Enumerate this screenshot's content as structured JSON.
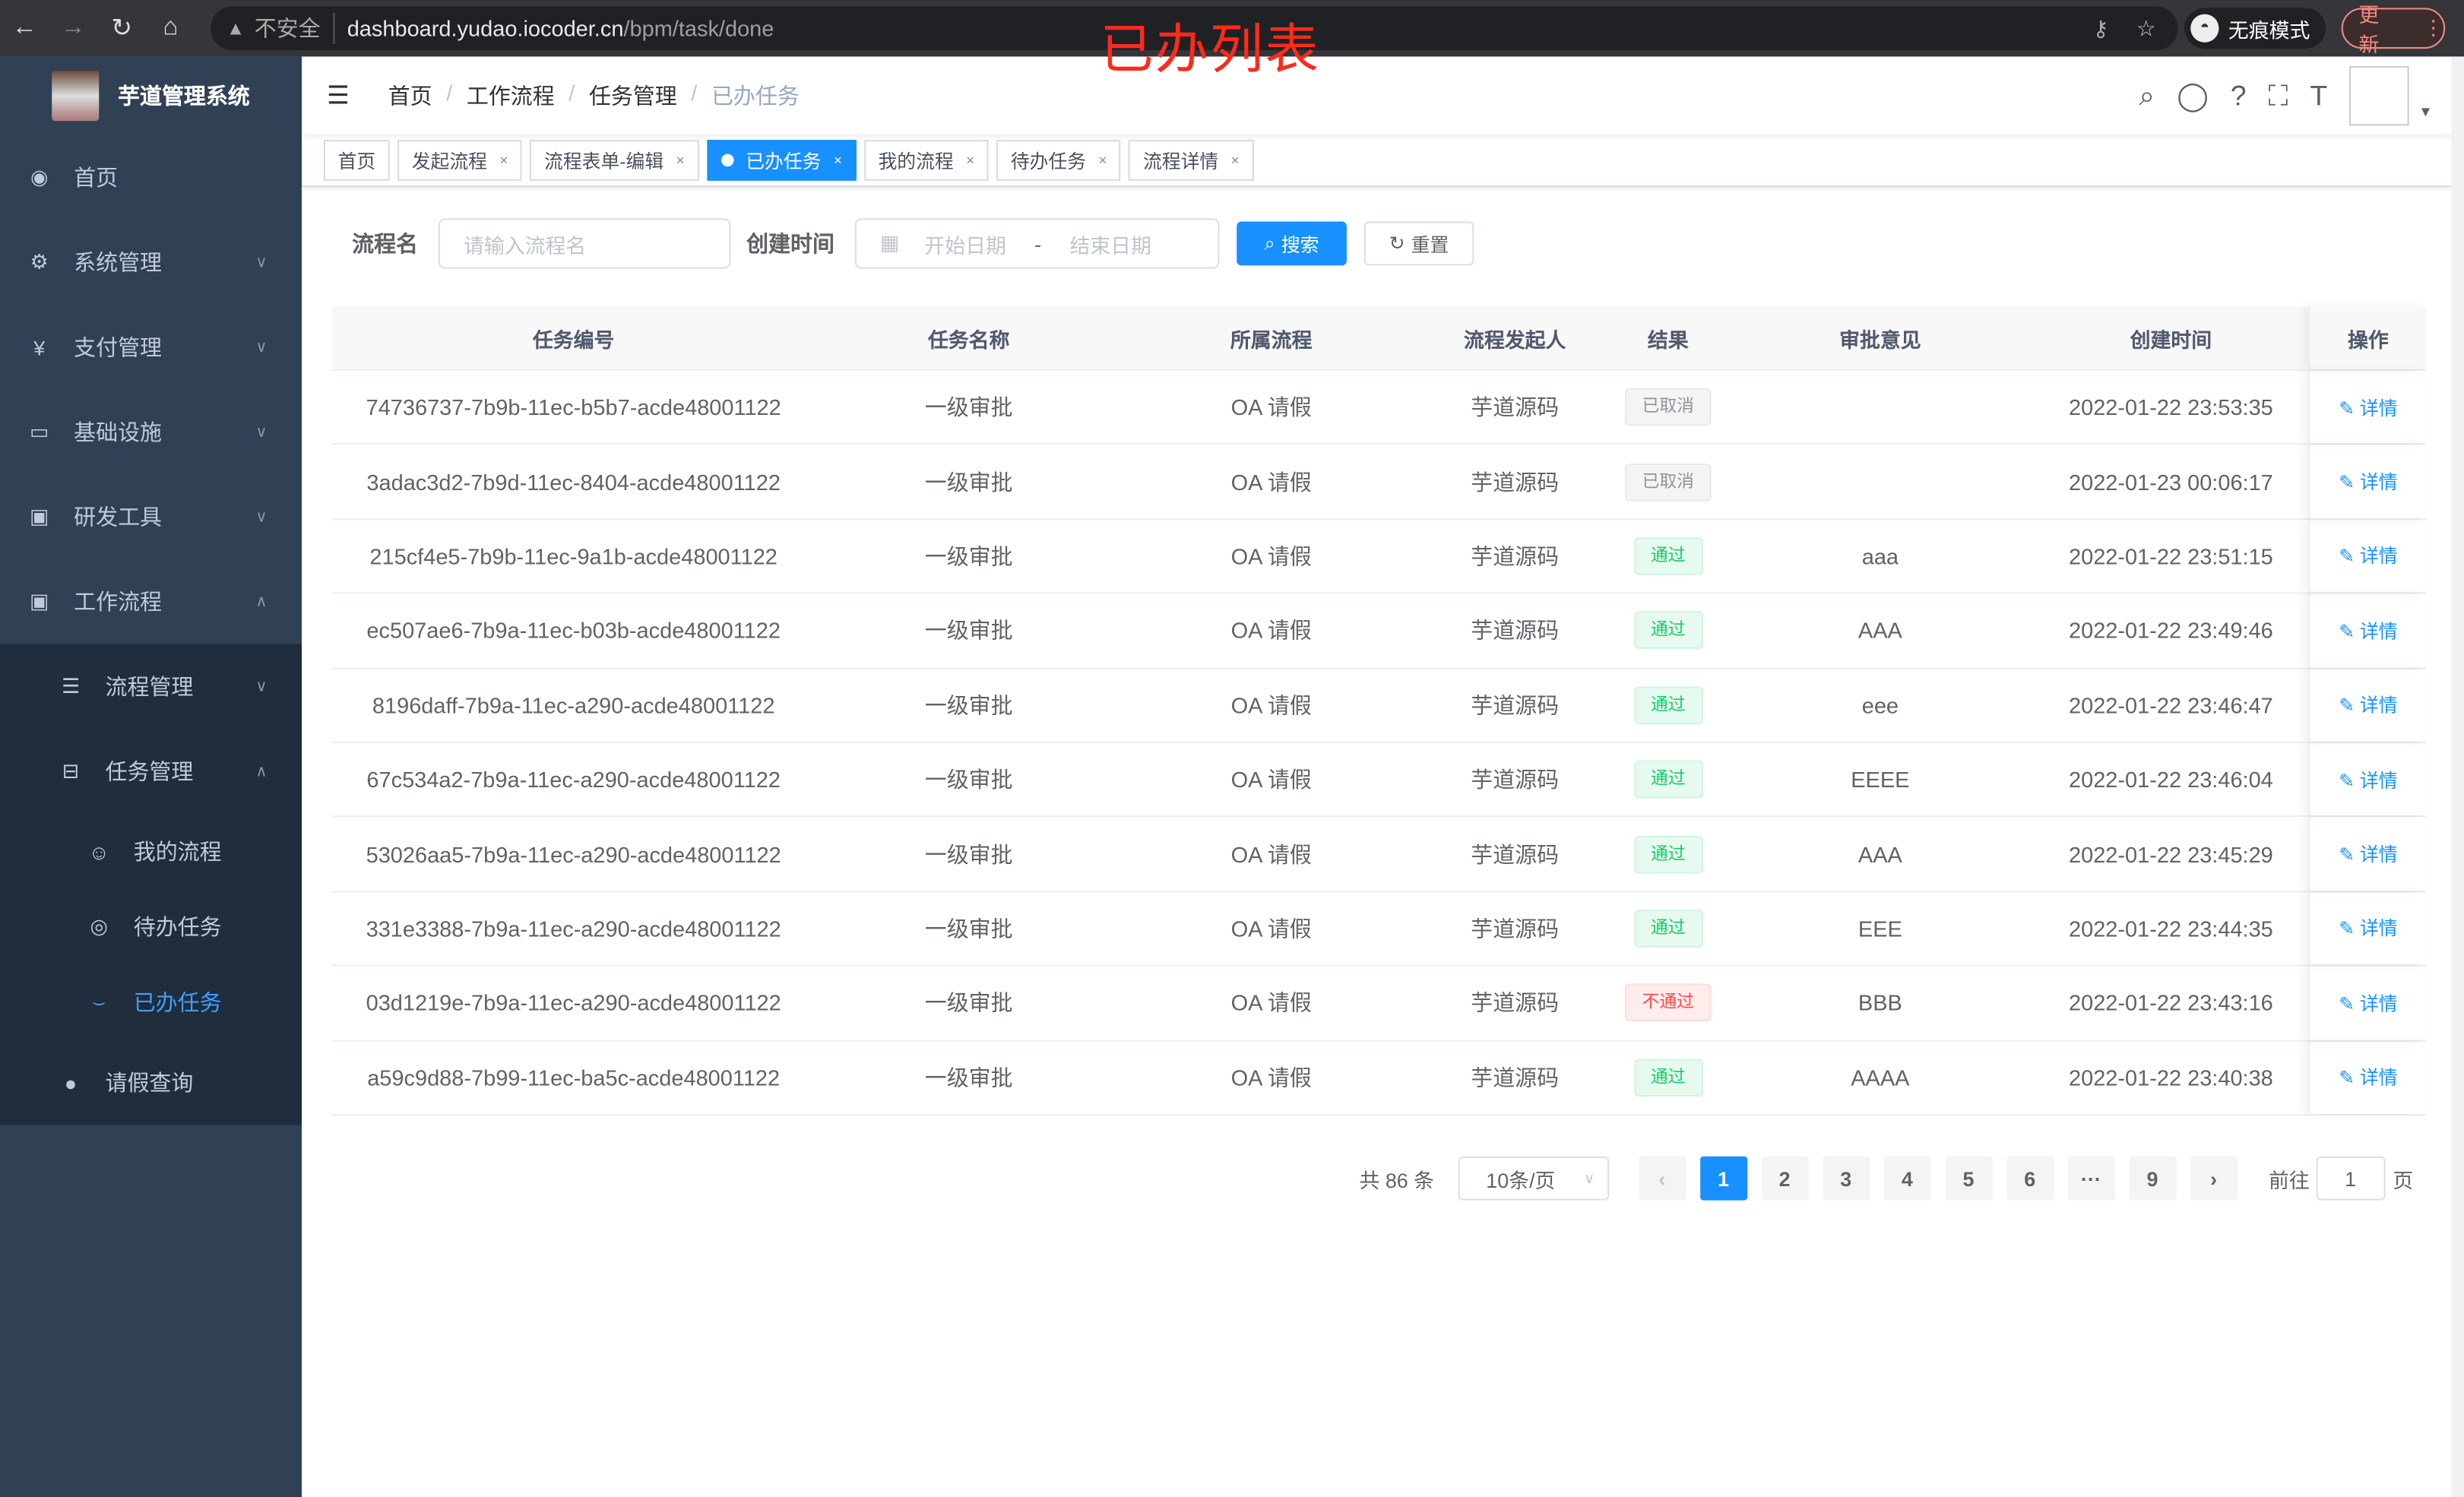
{
  "browser": {
    "not_secure": "不安全",
    "url_host": "dashboard.yudao.iocoder.cn",
    "url_path": "/bpm/task/done",
    "incognito": "无痕模式",
    "update": "更新"
  },
  "annotation": "已办列表",
  "sidebar": {
    "title": "芋道管理系统",
    "items": [
      {
        "label": "首页",
        "icon": "dashboard-icon"
      },
      {
        "label": "系统管理",
        "icon": "gear-icon"
      },
      {
        "label": "支付管理",
        "icon": "yen-icon"
      },
      {
        "label": "基础设施",
        "icon": "monitor-icon"
      },
      {
        "label": "研发工具",
        "icon": "toolbox-icon"
      },
      {
        "label": "工作流程",
        "icon": "toolbox-icon"
      }
    ],
    "workflow_children": [
      {
        "label": "流程管理"
      },
      {
        "label": "任务管理"
      }
    ],
    "task_children": [
      {
        "label": "我的流程"
      },
      {
        "label": "待办任务"
      },
      {
        "label": "已办任务"
      }
    ],
    "leave": "请假查询"
  },
  "breadcrumb": [
    "首页",
    "工作流程",
    "任务管理",
    "已办任务"
  ],
  "tags": [
    "首页",
    "发起流程",
    "流程表单-编辑",
    "已办任务",
    "我的流程",
    "待办任务",
    "流程详情"
  ],
  "active_tag": "已办任务",
  "search": {
    "name_label": "流程名",
    "name_placeholder": "请输入流程名",
    "time_label": "创建时间",
    "start_placeholder": "开始日期",
    "range_sep": "-",
    "end_placeholder": "结束日期",
    "search": "搜索",
    "reset": "重置"
  },
  "table": {
    "headers": [
      "任务编号",
      "任务名称",
      "所属流程",
      "流程发起人",
      "结果",
      "审批意见",
      "创建时间",
      "操作"
    ],
    "rows": [
      [
        "74736737-7b9b-11ec-b5b7-acde48001122",
        "一级审批",
        "OA 请假",
        "芋道源码",
        "已取消",
        "",
        "2022-01-22 23:53:35",
        "详情"
      ],
      [
        "3adac3d2-7b9d-11ec-8404-acde48001122",
        "一级审批",
        "OA 请假",
        "芋道源码",
        "已取消",
        "",
        "2022-01-23 00:06:17",
        "详情"
      ],
      [
        "215cf4e5-7b9b-11ec-9a1b-acde48001122",
        "一级审批",
        "OA 请假",
        "芋道源码",
        "通过",
        "aaa",
        "2022-01-22 23:51:15",
        "详情"
      ],
      [
        "ec507ae6-7b9a-11ec-b03b-acde48001122",
        "一级审批",
        "OA 请假",
        "芋道源码",
        "通过",
        "AAA",
        "2022-01-22 23:49:46",
        "详情"
      ],
      [
        "8196daff-7b9a-11ec-a290-acde48001122",
        "一级审批",
        "OA 请假",
        "芋道源码",
        "通过",
        "eee",
        "2022-01-22 23:46:47",
        "详情"
      ],
      [
        "67c534a2-7b9a-11ec-a290-acde48001122",
        "一级审批",
        "OA 请假",
        "芋道源码",
        "通过",
        "EEEE",
        "2022-01-22 23:46:04",
        "详情"
      ],
      [
        "53026aa5-7b9a-11ec-a290-acde48001122",
        "一级审批",
        "OA 请假",
        "芋道源码",
        "通过",
        "AAA",
        "2022-01-22 23:45:29",
        "详情"
      ],
      [
        "331e3388-7b9a-11ec-a290-acde48001122",
        "一级审批",
        "OA 请假",
        "芋道源码",
        "通过",
        "EEE",
        "2022-01-22 23:44:35",
        "详情"
      ],
      [
        "03d1219e-7b9a-11ec-a290-acde48001122",
        "一级审批",
        "OA 请假",
        "芋道源码",
        "不通过",
        "BBB",
        "2022-01-22 23:43:16",
        "详情"
      ],
      [
        "a59c9d88-7b99-11ec-ba5c-acde48001122",
        "一级审批",
        "OA 请假",
        "芋道源码",
        "通过",
        "AAAA",
        "2022-01-22 23:40:38",
        "详情"
      ]
    ]
  },
  "pagination": {
    "total": "共 86 条",
    "page_size": "10条/页",
    "pages": [
      "1",
      "2",
      "3",
      "4",
      "5",
      "6",
      "···",
      "9"
    ],
    "current": "1",
    "goto_label": "前往",
    "goto_value": "1",
    "goto_suffix": "页"
  },
  "colors": {
    "primary": "#1890ff",
    "sidebar": "#304156",
    "success": "#13ce66",
    "danger": "#ff4949",
    "info": "#909399"
  }
}
